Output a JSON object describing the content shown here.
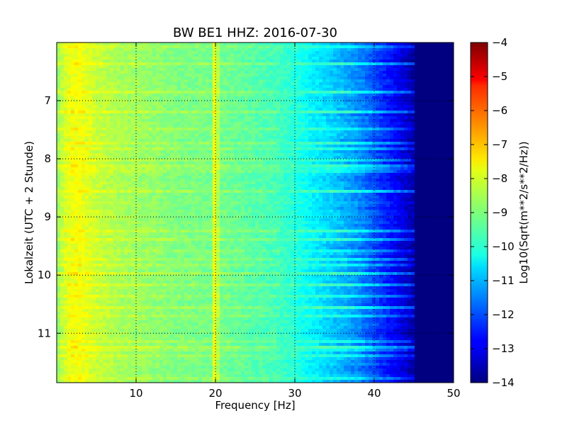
{
  "chart_data": {
    "type": "heatmap",
    "title": "BW BE1 HHZ: 2016-07-30",
    "xlabel": "Frequency [Hz]",
    "ylabel": "Lokalzeit (UTC + 2 Stunde)",
    "colorbar_label": "Log10(Sqrt(m**2/s**2/Hz))",
    "colormap": "jet",
    "xlim": [
      0,
      50
    ],
    "ylim": [
      11.85,
      6.0
    ],
    "x_ticks": [
      10,
      20,
      30,
      40,
      50
    ],
    "x_tick_labels": [
      "10",
      "20",
      "30",
      "40",
      "50"
    ],
    "y_ticks": [
      7,
      8,
      9,
      10,
      11
    ],
    "y_tick_labels": [
      "7",
      "8",
      "9",
      "10",
      "11"
    ],
    "color_range": [
      -14,
      -4
    ],
    "colorbar_ticks": [
      -4,
      -5,
      -6,
      -7,
      -8,
      -9,
      -10,
      -11,
      -12,
      -13,
      -14
    ],
    "colorbar_tick_labels": [
      "−4",
      "−5",
      "−6",
      "−7",
      "−8",
      "−9",
      "−10",
      "−11",
      "−12",
      "−13",
      "−14"
    ],
    "grid": true,
    "spectrum_profile": {
      "frequency_hz": [
        0,
        1,
        2,
        3,
        5,
        8,
        10,
        15,
        19.5,
        20,
        20.5,
        25,
        28,
        30,
        32,
        35,
        38,
        40,
        42,
        44,
        45,
        46,
        50
      ],
      "log10_amplitude": [
        -8.8,
        -8.2,
        -7.9,
        -7.9,
        -8.3,
        -8.6,
        -8.7,
        -9.0,
        -9.1,
        -7.6,
        -9.1,
        -9.4,
        -9.6,
        -9.9,
        -10.3,
        -10.8,
        -11.4,
        -12.0,
        -12.6,
        -13.2,
        -13.6,
        -14.0,
        -14.0
      ]
    }
  }
}
